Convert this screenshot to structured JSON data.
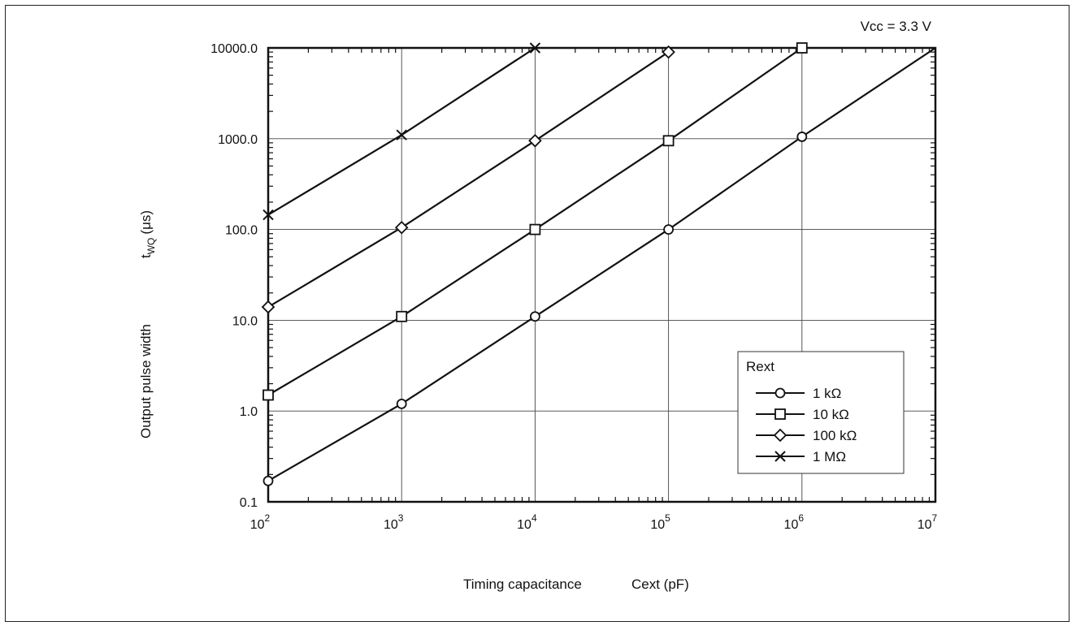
{
  "chart_data": {
    "type": "line",
    "annotation": "Vcc = 3.3 V",
    "xlabel_main": "Timing capacitance",
    "xlabel_unit": "Cext (pF)",
    "ylabel_main": "Output pulse width",
    "ylabel_t": "t",
    "ylabel_sub": "WQ",
    "ylabel_unit": "(μs)",
    "xscale": "log",
    "yscale": "log",
    "xlim": [
      100,
      10000000
    ],
    "ylim": [
      0.1,
      10000
    ],
    "grid": true,
    "x_tick_values": [
      100,
      1000,
      10000,
      100000,
      1000000,
      10000000
    ],
    "x_tick_bases": [
      "10",
      "10",
      "10",
      "10",
      "10",
      "10"
    ],
    "x_tick_exps": [
      "2",
      "3",
      "4",
      "5",
      "6",
      "7"
    ],
    "y_tick_values": [
      0.1,
      1,
      10,
      100,
      1000,
      10000
    ],
    "y_tick_labels": [
      "0.1",
      "1.0",
      "10.0",
      "100.0",
      "1000.0",
      "10000.0"
    ],
    "legend": {
      "title": "Rext",
      "placement": "lower-right"
    },
    "series": [
      {
        "name": "1 kΩ",
        "marker": "circle",
        "x": [
          100,
          1000,
          10000,
          100000,
          1000000,
          10000000
        ],
        "y": [
          0.17,
          1.2,
          11,
          100,
          1050,
          10000
        ],
        "marker_x": [
          100,
          1000,
          10000,
          100000,
          1000000
        ]
      },
      {
        "name": "10 kΩ",
        "marker": "square",
        "x": [
          100,
          1000,
          10000,
          100000,
          1000000
        ],
        "y": [
          1.5,
          11,
          100,
          950,
          10000
        ],
        "marker_x": [
          100,
          1000,
          10000,
          100000,
          1000000
        ]
      },
      {
        "name": "100 kΩ",
        "marker": "diamond",
        "x": [
          100,
          1000,
          10000,
          100000
        ],
        "y": [
          14,
          105,
          950,
          9000
        ],
        "marker_x": [
          100,
          1000,
          10000,
          100000
        ]
      },
      {
        "name": "1 MΩ",
        "marker": "cross",
        "x": [
          100,
          1000,
          10000
        ],
        "y": [
          145,
          1100,
          10000
        ],
        "marker_x": [
          100,
          1000,
          10000
        ]
      }
    ]
  }
}
